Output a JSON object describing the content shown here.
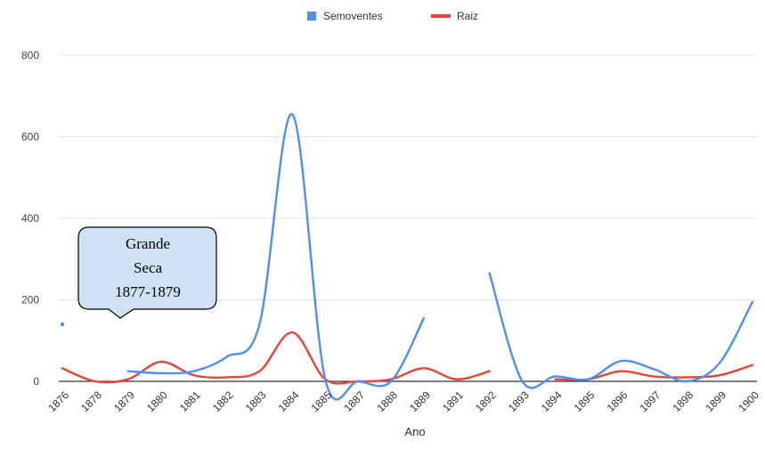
{
  "chart_data": {
    "type": "line",
    "title": "",
    "xlabel": "Ano",
    "ylabel": "",
    "categories": [
      "1876",
      "1878",
      "1879",
      "1880",
      "1881",
      "1882",
      "1883",
      "1884",
      "1885",
      "1887",
      "1888",
      "1889",
      "1891",
      "1892",
      "1893",
      "1894",
      "1895",
      "1896",
      "1897",
      "1898",
      "1899",
      "1900"
    ],
    "ylim": [
      0,
      800
    ],
    "yticks": [
      "0",
      "200",
      "400",
      "600",
      "800"
    ],
    "grid": true,
    "legend_position": "top",
    "series": [
      {
        "name": "Semoventes",
        "color": "#4f8ef7",
        "values": [
          140,
          null,
          25,
          20,
          25,
          60,
          140,
          655,
          5,
          0,
          0,
          155,
          null,
          265,
          0,
          12,
          5,
          50,
          30,
          0,
          45,
          195
        ]
      },
      {
        "name": "Raiz",
        "color": "#ea4335",
        "values": [
          32,
          0,
          5,
          48,
          15,
          10,
          25,
          120,
          5,
          0,
          5,
          32,
          5,
          25,
          null,
          5,
          5,
          25,
          12,
          10,
          15,
          40
        ]
      }
    ],
    "annotations": [
      {
        "text_lines": [
          "Grande",
          "Seca",
          "1877-1879"
        ],
        "points_to_category": "1879"
      }
    ]
  }
}
